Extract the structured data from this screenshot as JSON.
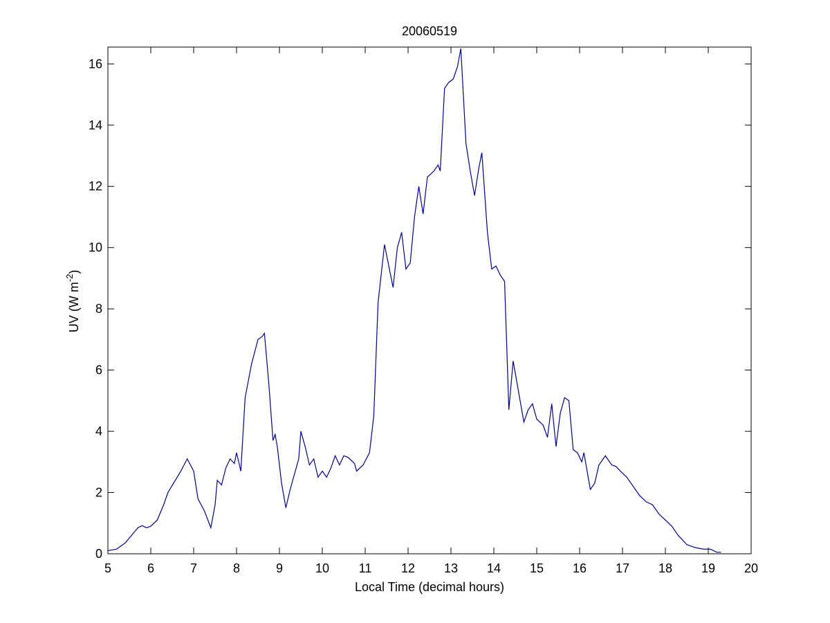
{
  "chart_data": {
    "type": "line",
    "title": "20060519",
    "xlabel": "Local Time (decimal hours)",
    "ylabel": {
      "text": "UV (W m",
      "superscript": "-2",
      "suffix": ")"
    },
    "xlim": [
      5,
      20
    ],
    "xticks": [
      5,
      6,
      7,
      8,
      9,
      10,
      11,
      12,
      13,
      14,
      15,
      16,
      17,
      18,
      19,
      20
    ],
    "ylim": [
      0,
      16.55
    ],
    "yticks": [
      0,
      2,
      4,
      6,
      8,
      10,
      12,
      14,
      16
    ],
    "grid": false,
    "series": [
      {
        "color": "#00008b",
        "x": [
          5.0,
          5.2,
          5.4,
          5.55,
          5.7,
          5.8,
          5.9,
          6.0,
          6.15,
          6.3,
          6.4,
          6.55,
          6.7,
          6.85,
          7.0,
          7.1,
          7.25,
          7.4,
          7.5,
          7.55,
          7.65,
          7.75,
          7.85,
          7.95,
          8.0,
          8.1,
          8.2,
          8.35,
          8.5,
          8.6,
          8.65,
          8.75,
          8.85,
          8.9,
          8.95,
          9.05,
          9.15,
          9.25,
          9.35,
          9.45,
          9.5,
          9.6,
          9.7,
          9.8,
          9.9,
          10.0,
          10.1,
          10.2,
          10.3,
          10.4,
          10.5,
          10.6,
          10.75,
          10.8,
          10.95,
          11.1,
          11.2,
          11.3,
          11.45,
          11.55,
          11.65,
          11.75,
          11.85,
          11.95,
          12.05,
          12.15,
          12.25,
          12.35,
          12.45,
          12.6,
          12.7,
          12.75,
          12.85,
          12.95,
          13.05,
          13.15,
          13.23,
          13.35,
          13.45,
          13.55,
          13.65,
          13.72,
          13.85,
          13.95,
          14.05,
          14.15,
          14.25,
          14.35,
          14.45,
          14.55,
          14.7,
          14.8,
          14.9,
          15.0,
          15.15,
          15.25,
          15.35,
          15.45,
          15.55,
          15.65,
          15.75,
          15.85,
          15.95,
          16.05,
          16.1,
          16.25,
          16.35,
          16.45,
          16.6,
          16.75,
          16.85,
          16.95,
          17.1,
          17.25,
          17.4,
          17.55,
          17.7,
          17.85,
          18.0,
          18.15,
          18.3,
          18.5,
          18.7,
          18.9,
          19.05,
          19.2,
          19.3
        ],
        "values": [
          0.1,
          0.15,
          0.35,
          0.6,
          0.85,
          0.92,
          0.85,
          0.9,
          1.1,
          1.6,
          2.0,
          2.35,
          2.7,
          3.1,
          2.7,
          1.8,
          1.4,
          0.85,
          1.6,
          2.4,
          2.25,
          2.8,
          3.1,
          2.95,
          3.3,
          2.7,
          5.1,
          6.2,
          7.0,
          7.1,
          7.2,
          5.6,
          3.7,
          3.9,
          3.5,
          2.3,
          1.5,
          2.1,
          2.6,
          3.1,
          4.0,
          3.5,
          2.9,
          3.1,
          2.5,
          2.7,
          2.5,
          2.8,
          3.2,
          2.9,
          3.2,
          3.15,
          2.95,
          2.7,
          2.9,
          3.3,
          4.5,
          8.2,
          10.1,
          9.4,
          8.7,
          10.0,
          10.5,
          9.3,
          9.5,
          11.0,
          12.0,
          11.1,
          12.3,
          12.5,
          12.7,
          12.5,
          15.2,
          15.4,
          15.5,
          15.9,
          16.5,
          13.4,
          12.5,
          11.7,
          12.6,
          13.1,
          10.5,
          9.3,
          9.4,
          9.1,
          8.9,
          4.7,
          6.3,
          5.5,
          4.3,
          4.7,
          4.9,
          4.4,
          4.2,
          3.8,
          4.9,
          3.5,
          4.6,
          5.1,
          5.0,
          3.4,
          3.3,
          3.0,
          3.3,
          2.1,
          2.3,
          2.9,
          3.2,
          2.9,
          2.85,
          2.7,
          2.5,
          2.2,
          1.9,
          1.7,
          1.6,
          1.3,
          1.1,
          0.9,
          0.6,
          0.3,
          0.2,
          0.15,
          0.15,
          0.05,
          0.05
        ]
      }
    ]
  }
}
